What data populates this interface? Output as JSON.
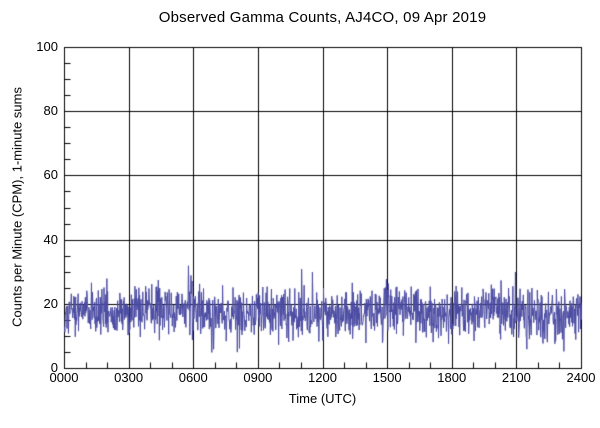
{
  "chart_data": {
    "type": "line",
    "title": "Observed Gamma Counts, AJ4CO, 09 Apr 2019",
    "xlabel": "Time (UTC)",
    "ylabel": "Counts per Minute (CPM), 1-minute sums",
    "xlim_minutes": [
      0,
      1440
    ],
    "ylim": [
      0,
      100
    ],
    "x_tick_labels": [
      "0000",
      "0300",
      "0600",
      "0900",
      "1200",
      "1500",
      "1800",
      "2100",
      "2400"
    ],
    "x_major_step_minutes": 180,
    "x_minor_step_minutes": 60,
    "y_tick_values": [
      0,
      20,
      40,
      60,
      80,
      100
    ],
    "y_minor_step": 5,
    "grid": true,
    "legend": "none",
    "colors": {
      "line": "#4a4aa2",
      "grid": "#000000",
      "axis": "#000000",
      "background": "#ffffff",
      "text": "#000000"
    },
    "series": [
      {
        "name": "Observed gamma counts",
        "n_points": 1440,
        "cadence": "1-minute sums",
        "mean_cpm": 17.4,
        "std_cpm": 3.8,
        "typical_range_cpm": [
          8,
          28
        ],
        "peak_cpm": 32,
        "peak_time_utc": "0545",
        "min_cpm": 5,
        "min_time_utc": "0650",
        "noise_seed": 20190409,
        "notable_features": [
          {
            "time_utc": "0545",
            "minute": 345,
            "cpm": 32
          },
          {
            "time_utc": "0552",
            "minute": 352,
            "cpm": 29
          },
          {
            "time_utc": "0650",
            "minute": 410,
            "cpm": 5
          },
          {
            "time_utc": "0655",
            "minute": 415,
            "cpm": 6
          },
          {
            "time_utc": "1100",
            "minute": 660,
            "cpm": 31
          },
          {
            "time_utc": "1130",
            "minute": 690,
            "cpm": 30
          },
          {
            "time_utc": "2055",
            "minute": 1255,
            "cpm": 30
          }
        ]
      }
    ]
  }
}
